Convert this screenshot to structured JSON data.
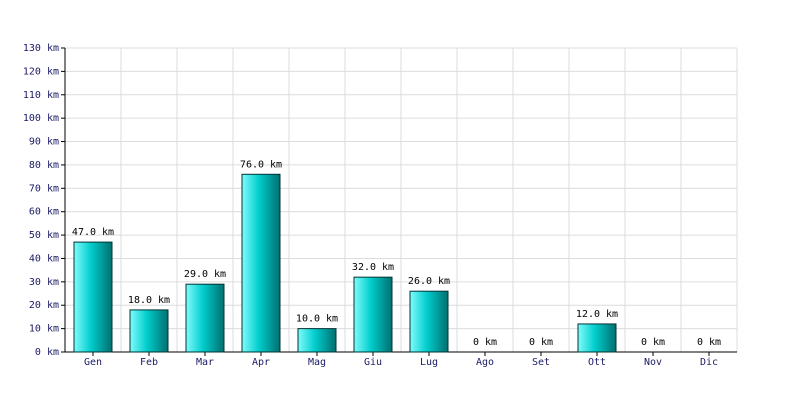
{
  "chart_data": {
    "type": "bar",
    "categories": [
      "Gen",
      "Feb",
      "Mar",
      "Apr",
      "Mag",
      "Giu",
      "Lug",
      "Ago",
      "Set",
      "Ott",
      "Nov",
      "Dic"
    ],
    "values": [
      47,
      18,
      29,
      76,
      10,
      32,
      26,
      0,
      0,
      12,
      0,
      0
    ],
    "value_labels": [
      "47.0 km",
      "18.0 km",
      "29.0 km",
      "76.0 km",
      "10.0 km",
      "32.0 km",
      "26.0 km",
      "0 km",
      "0 km",
      "12.0 km",
      "0 km",
      "0 km"
    ],
    "color": "#00cccc",
    "ylim": [
      0,
      130
    ],
    "yticks": [
      {
        "value": 0,
        "label": "0 km"
      },
      {
        "value": 10,
        "label": "10 km"
      },
      {
        "value": 20,
        "label": "20 km"
      },
      {
        "value": 30,
        "label": "30 km"
      },
      {
        "value": 40,
        "label": "40 km"
      },
      {
        "value": 50,
        "label": "50 km"
      },
      {
        "value": 60,
        "label": "60 km"
      },
      {
        "value": 70,
        "label": "70 km"
      },
      {
        "value": 80,
        "label": "80 km"
      },
      {
        "value": 90,
        "label": "90 km"
      },
      {
        "value": 100,
        "label": "100 km"
      },
      {
        "value": 110,
        "label": "110 km"
      },
      {
        "value": 120,
        "label": "120 km"
      },
      {
        "value": 130,
        "label": "130 km"
      }
    ],
    "grid": true
  }
}
